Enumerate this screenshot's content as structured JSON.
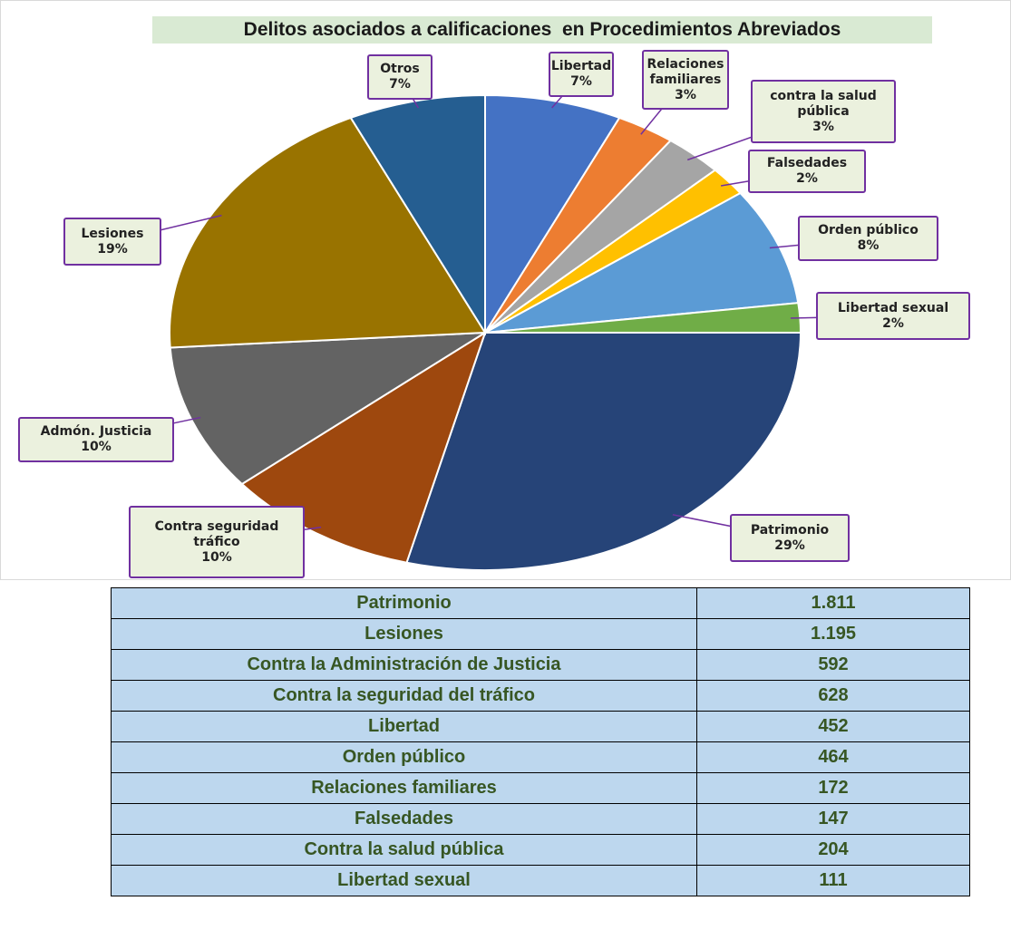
{
  "chart_data": {
    "type": "pie",
    "title": "Delitos asociados a calificaciones  en Procedimientos Abreviados",
    "categories": [
      "Libertad",
      "Relaciones familiares",
      "contra la salud pública",
      "Falsedades",
      "Orden público",
      "Libertad sexual",
      "Patrimonio",
      "Contra seguridad tráfico",
      "Admón. Justicia",
      "Lesiones",
      "Otros"
    ],
    "values": [
      7,
      3,
      3,
      2,
      8,
      2,
      29,
      10,
      10,
      19,
      7
    ],
    "value_labels": [
      "7%",
      "3%",
      "3%",
      "2%",
      "8%",
      "2%",
      "29%",
      "10%",
      "10%",
      "19%",
      "7%"
    ],
    "colors": [
      "#4472c4",
      "#ed7d31",
      "#a5a5a5",
      "#ffc000",
      "#5b9bd5",
      "#70ad47",
      "#264478",
      "#9e480e",
      "#636363",
      "#997300",
      "#255e91"
    ]
  },
  "table": {
    "rows": [
      [
        "Patrimonio",
        "1.811"
      ],
      [
        "Lesiones",
        "1.195"
      ],
      [
        "Contra la Administración de Justicia",
        "592"
      ],
      [
        "Contra la seguridad del tráfico",
        "628"
      ],
      [
        "Libertad",
        "452"
      ],
      [
        "Orden público",
        "464"
      ],
      [
        "Relaciones familiares",
        "172"
      ],
      [
        "Falsedades",
        "147"
      ],
      [
        "Contra la salud pública",
        "204"
      ],
      [
        "Libertad sexual",
        "111"
      ]
    ]
  }
}
